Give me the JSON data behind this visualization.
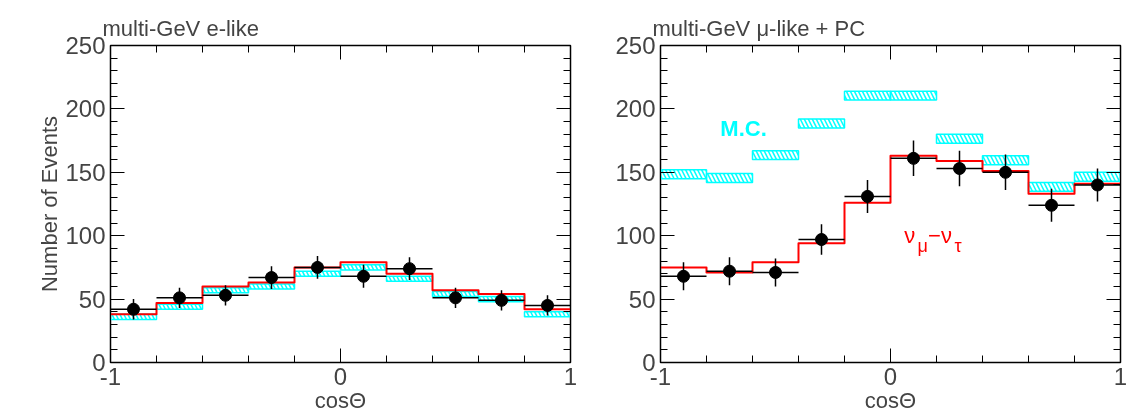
{
  "chart_data": [
    {
      "type": "scatter",
      "title": "multi-GeV e-like",
      "xlabel": "cosΘ",
      "ylabel": "Number of Events",
      "xlim": [
        -1,
        1
      ],
      "ylim": [
        0,
        250
      ],
      "xticks": [
        {
          "value": -1,
          "label": "-1"
        },
        {
          "value": -0.8,
          "label": null
        },
        {
          "value": -0.6,
          "label": null
        },
        {
          "value": -0.4,
          "label": null
        },
        {
          "value": -0.2,
          "label": null
        },
        0,
        {
          "value": 0.2,
          "label": null
        },
        {
          "value": 0.4,
          "label": null
        },
        {
          "value": 0.6,
          "label": null
        },
        {
          "value": 0.8,
          "label": null
        },
        1
      ],
      "yticks": [
        0,
        {
          "value": 10,
          "label": null
        },
        {
          "value": 20,
          "label": null
        },
        {
          "value": 30,
          "label": null
        },
        {
          "value": 40,
          "label": null
        },
        50,
        {
          "value": 60,
          "label": null
        },
        {
          "value": 70,
          "label": null
        },
        {
          "value": 80,
          "label": null
        },
        {
          "value": 90,
          "label": null
        },
        100,
        {
          "value": 110,
          "label": null
        },
        {
          "value": 120,
          "label": null
        },
        {
          "value": 130,
          "label": null
        },
        {
          "value": 140,
          "label": null
        },
        150,
        {
          "value": 160,
          "label": null
        },
        {
          "value": 170,
          "label": null
        },
        {
          "value": 180,
          "label": null
        },
        {
          "value": 190,
          "label": null
        },
        200,
        {
          "value": 210,
          "label": null
        },
        {
          "value": 220,
          "label": null
        },
        {
          "value": 230,
          "label": null
        },
        {
          "value": 240,
          "label": null
        },
        250
      ],
      "grid": false,
      "x": [
        -0.9,
        -0.7,
        -0.5,
        -0.3,
        -0.1,
        0.1,
        0.3,
        0.5,
        0.7,
        0.9
      ],
      "series": [
        {
          "type": "bar",
          "color": "#00ffff",
          "base": [
            34,
            42,
            55,
            58,
            68,
            73,
            64,
            52,
            48,
            36
          ],
          "values": [
            4,
            4,
            4,
            4,
            4,
            4,
            4,
            4,
            4,
            4
          ]
        },
        {
          "type": "step",
          "color": "#ff0000",
          "x": [
            -1,
            -0.8,
            -0.6,
            -0.4,
            -0.2,
            0,
            0.2,
            0.4,
            0.6,
            0.8,
            1
          ],
          "values": [
            38,
            47,
            60,
            63,
            75,
            79,
            70,
            57,
            54,
            42,
            42
          ]
        },
        {
          "color": "#000000",
          "marker": "circle",
          "values": [
            42,
            51,
            53,
            67,
            75,
            68,
            74,
            51,
            49,
            45
          ],
          "errors": [
            8,
            8,
            8,
            9,
            9,
            9,
            9,
            8,
            8,
            8
          ],
          "xerrors": [
            0.1,
            0.1,
            0.1,
            0.1,
            0.1,
            0.1,
            0.1,
            0.1,
            0.1,
            0.1
          ]
        }
      ]
    },
    {
      "type": "scatter",
      "title": "multi-GeV μ-like + PC",
      "xlabel": "cosΘ",
      "xlim": [
        -1,
        1
      ],
      "ylim": [
        0,
        250
      ],
      "xticks": [
        {
          "value": -1,
          "label": "-1"
        },
        {
          "value": -0.8,
          "label": null
        },
        {
          "value": -0.6,
          "label": null
        },
        {
          "value": -0.4,
          "label": null
        },
        {
          "value": -0.2,
          "label": null
        },
        0,
        {
          "value": 0.2,
          "label": null
        },
        {
          "value": 0.4,
          "label": null
        },
        {
          "value": 0.6,
          "label": null
        },
        {
          "value": 0.8,
          "label": null
        },
        1
      ],
      "yticks": [
        0,
        {
          "value": 10,
          "label": null
        },
        {
          "value": 20,
          "label": null
        },
        {
          "value": 30,
          "label": null
        },
        {
          "value": 40,
          "label": null
        },
        50,
        {
          "value": 60,
          "label": null
        },
        {
          "value": 70,
          "label": null
        },
        {
          "value": 80,
          "label": null
        },
        {
          "value": 90,
          "label": null
        },
        100,
        {
          "value": 110,
          "label": null
        },
        {
          "value": 120,
          "label": null
        },
        {
          "value": 130,
          "label": null
        },
        {
          "value": 140,
          "label": null
        },
        150,
        {
          "value": 160,
          "label": null
        },
        {
          "value": 170,
          "label": null
        },
        {
          "value": 180,
          "label": null
        },
        {
          "value": 190,
          "label": null
        },
        200,
        {
          "value": 210,
          "label": null
        },
        {
          "value": 220,
          "label": null
        },
        {
          "value": 230,
          "label": null
        },
        {
          "value": 240,
          "label": null
        },
        250
      ],
      "grid": false,
      "x": [
        -0.9,
        -0.7,
        -0.5,
        -0.3,
        -0.1,
        0.1,
        0.3,
        0.5,
        0.7,
        0.9
      ],
      "series": [
        {
          "type": "bar",
          "name": "M.C.",
          "color": "#00ffff",
          "base": [
            145,
            142,
            160,
            185,
            207,
            207,
            173,
            156,
            135,
            143
          ],
          "values": [
            7,
            7,
            7,
            7,
            7,
            7,
            7,
            7,
            7,
            7
          ]
        },
        {
          "type": "step",
          "name": "ν$_{μ}$−ν$_{τ}$",
          "color": "#ff0000",
          "x": [
            -1,
            -0.8,
            -0.6,
            -0.4,
            -0.2,
            0,
            0.2,
            0.4,
            0.6,
            0.8,
            1
          ],
          "values": [
            75,
            71,
            79,
            94,
            126,
            163,
            159,
            151,
            133,
            141,
            141
          ]
        },
        {
          "color": "#000000",
          "marker": "circle",
          "values": [
            68,
            72,
            71,
            97,
            131,
            161,
            153,
            150,
            124,
            140
          ],
          "errors": [
            11,
            11,
            11,
            12,
            13,
            14,
            14,
            14,
            13,
            13
          ],
          "xerrors": [
            0.1,
            0.1,
            0.1,
            0.1,
            0.1,
            0.1,
            0.1,
            0.1,
            0.1,
            0.1
          ]
        }
      ]
    }
  ]
}
